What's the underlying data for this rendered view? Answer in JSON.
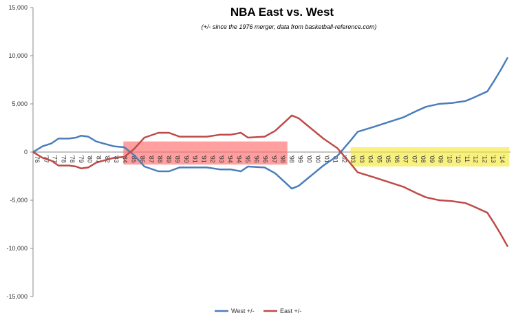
{
  "chart_data": {
    "type": "line",
    "title": "NBA East vs. West",
    "subtitle": "(+/- since the 1976 merger, data from basketball-reference.com)",
    "xlabel": "",
    "ylabel": "",
    "ylim": [
      -15000,
      15000
    ],
    "yticks": [
      "15,000",
      "10,000",
      "5,000",
      "0",
      "-5,000",
      "-10,000",
      "-15,000"
    ],
    "ytick_values": [
      15000,
      10000,
      5000,
      0,
      -5000,
      -10000,
      -15000
    ],
    "categories": [
      "'76",
      "'77",
      "'77",
      "'78",
      "'78",
      "'79",
      "'80",
      "'81",
      "'82",
      "'83",
      "'84",
      "'85",
      "'86",
      "'87",
      "'88",
      "'89",
      "'89",
      "'90",
      "'91",
      "'91",
      "'92",
      "'93",
      "'94",
      "'94",
      "'95",
      "'96",
      "'96",
      "'97",
      "'98",
      "'98",
      "'99",
      "'00",
      "'00",
      "'01",
      "'01",
      "'02",
      "'03",
      "'03",
      "'04",
      "'05",
      "'05",
      "'06",
      "'07",
      "'07",
      "'08",
      "'09",
      "'09",
      "'10",
      "'10",
      "'11",
      "'12",
      "'12",
      "'13",
      "'14"
    ],
    "legend_position": "bottom",
    "series": [
      {
        "name": "West +/-",
        "color": "#4a7ebb",
        "x": [
          0,
          1.1,
          2.1,
          2.9,
          4.1,
          4.9,
          5.5,
          6.3,
          7.2,
          8,
          9.2,
          10.4,
          11.5,
          12.7,
          14.3,
          15.5,
          16.7,
          18.2,
          19.8,
          21.3,
          22.5,
          23.7,
          24.5,
          26.4,
          27.6,
          28.8,
          29.5,
          30.3,
          31.5,
          33.1,
          34.7,
          36.2,
          37,
          38.8,
          40.5,
          42.2,
          43.8,
          44.8,
          46.3,
          47.8,
          49.3,
          50.1,
          51.8,
          52.5,
          53.3,
          54.1
        ],
        "y": [
          0,
          600,
          900,
          1400,
          1400,
          1500,
          1700,
          1600,
          1100,
          900,
          600,
          500,
          -300,
          -1500,
          -2000,
          -2000,
          -1600,
          -1600,
          -1600,
          -1800,
          -1800,
          -2000,
          -1500,
          -1600,
          -2200,
          -3200,
          -3800,
          -3500,
          -2600,
          -1400,
          -400,
          1200,
          2100,
          2600,
          3100,
          3600,
          4300,
          4700,
          5000,
          5100,
          5300,
          5600,
          6300,
          7300,
          8500,
          9800
        ]
      },
      {
        "name": "East +/-",
        "color": "#be4b48",
        "x": [
          0,
          1.1,
          2.1,
          2.9,
          4.1,
          4.9,
          5.5,
          6.3,
          7.2,
          8,
          9.2,
          10.4,
          11.5,
          12.7,
          14.3,
          15.5,
          16.7,
          18.2,
          19.8,
          21.3,
          22.5,
          23.7,
          24.5,
          26.4,
          27.6,
          28.8,
          29.5,
          30.3,
          31.5,
          33.1,
          34.7,
          36.2,
          37,
          38.8,
          40.5,
          42.2,
          43.8,
          44.8,
          46.3,
          47.8,
          49.3,
          50.1,
          51.8,
          52.5,
          53.3,
          54.1
        ],
        "y": [
          0,
          -600,
          -900,
          -1400,
          -1400,
          -1500,
          -1700,
          -1600,
          -1100,
          -900,
          -600,
          -500,
          300,
          1500,
          2000,
          2000,
          1600,
          1600,
          1600,
          1800,
          1800,
          2000,
          1500,
          1600,
          2200,
          3200,
          3800,
          3500,
          2600,
          1400,
          400,
          -1200,
          -2100,
          -2600,
          -3100,
          -3600,
          -4300,
          -4700,
          -5000,
          -5100,
          -5300,
          -5600,
          -6300,
          -7300,
          -8500,
          -9800
        ]
      }
    ],
    "annotations": [
      {
        "type": "highlight",
        "color": "#ff6b6b",
        "x_range": [
          10.3,
          29
        ],
        "y_range": [
          -1300,
          1100
        ]
      },
      {
        "type": "highlight",
        "color": "#f5ea3a",
        "x_range": [
          36.2,
          54.3
        ],
        "y_range": [
          -1500,
          500
        ]
      }
    ]
  }
}
